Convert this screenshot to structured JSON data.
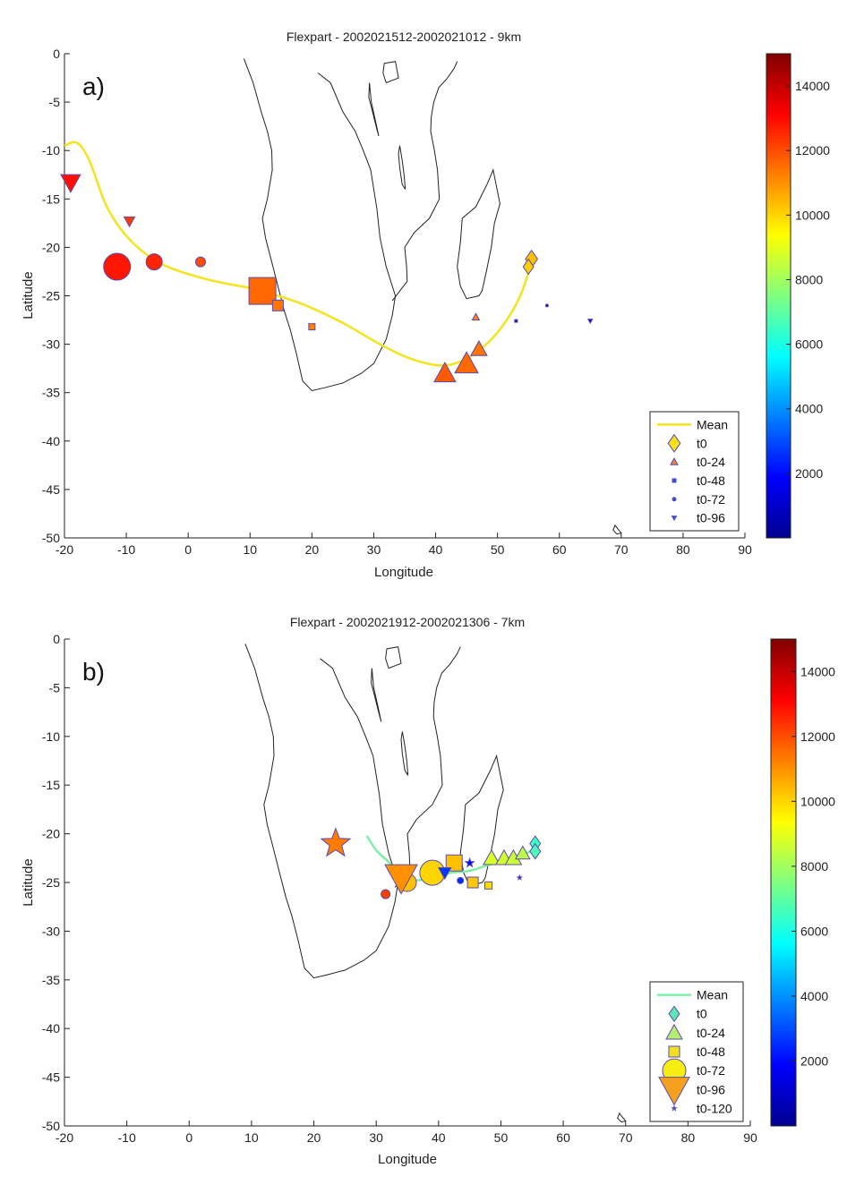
{
  "chart_data": [
    {
      "type": "scatter",
      "title": "Flexpart - 2002021512-2002021012 - 9km",
      "panel_label": "a)",
      "xlabel": "Longitude",
      "ylabel": "Latitude",
      "xlim": [
        -20,
        90
      ],
      "ylim": [
        -50,
        0
      ],
      "xticks": [
        "-20",
        "-10",
        "0",
        "10",
        "20",
        "30",
        "40",
        "50",
        "60",
        "70",
        "80",
        "90"
      ],
      "yticks": [
        "0",
        "-5",
        "-10",
        "-15",
        "-20",
        "-25",
        "-30",
        "-35",
        "-40",
        "-45",
        "-50"
      ],
      "colorbar": {
        "min": 0,
        "max": 15000,
        "ticks": [
          "2000",
          "4000",
          "6000",
          "8000",
          "10000",
          "12000",
          "14000"
        ]
      },
      "legend": {
        "placement": "bottom-right",
        "entries": [
          "Mean",
          "t0",
          "t0-24",
          "t0-48",
          "t0-72",
          "t0-96"
        ]
      },
      "mean_line": {
        "color": "#f5e31e",
        "points": [
          [
            -20,
            -9.5
          ],
          [
            -18,
            -9.2
          ],
          [
            -16,
            -11
          ],
          [
            -13,
            -16
          ],
          [
            -9,
            -19.5
          ],
          [
            -4,
            -21.8
          ],
          [
            3,
            -23.3
          ],
          [
            10,
            -24.2
          ],
          [
            14,
            -24.9
          ],
          [
            19,
            -26
          ],
          [
            25,
            -27.8
          ],
          [
            31,
            -30
          ],
          [
            36,
            -31.5
          ],
          [
            41,
            -32.2
          ],
          [
            45,
            -31.5
          ],
          [
            49,
            -29.5
          ],
          [
            52,
            -27
          ],
          [
            54,
            -24.5
          ],
          [
            55.5,
            -21.5
          ]
        ]
      },
      "series": [
        {
          "name": "t0",
          "marker": "diamond",
          "points": [
            {
              "x": 55.5,
              "y": -21.2,
              "alt": 10300,
              "size": 16
            },
            {
              "x": 55,
              "y": -22,
              "alt": 10100,
              "size": 14
            }
          ]
        },
        {
          "name": "t0-24",
          "marker": "triangle-up",
          "points": [
            {
              "x": 41.5,
              "y": -33,
              "alt": 11800,
              "size": 24
            },
            {
              "x": 45,
              "y": -32,
              "alt": 11600,
              "size": 26
            },
            {
              "x": 47,
              "y": -30.5,
              "alt": 11400,
              "size": 18
            },
            {
              "x": 46.5,
              "y": -27.2,
              "alt": 11200,
              "size": 8
            }
          ]
        },
        {
          "name": "t0-48",
          "marker": "square",
          "points": [
            {
              "x": 12,
              "y": -24.5,
              "alt": 11600,
              "size": 30
            },
            {
              "x": 14.5,
              "y": -26,
              "alt": 11400,
              "size": 12
            },
            {
              "x": 20,
              "y": -28.2,
              "alt": 11300,
              "size": 7
            },
            {
              "x": 53,
              "y": -27.6,
              "alt": 1000,
              "size": 3
            }
          ]
        },
        {
          "name": "t0-72",
          "marker": "circle",
          "points": [
            {
              "x": -11.5,
              "y": -22,
              "alt": 12800,
              "size": 30
            },
            {
              "x": -5.5,
              "y": -21.5,
              "alt": 12600,
              "size": 18
            },
            {
              "x": 2,
              "y": -21.5,
              "alt": 12000,
              "size": 11
            },
            {
              "x": 58,
              "y": -26,
              "alt": 1000,
              "size": 3
            }
          ]
        },
        {
          "name": "t0-96",
          "marker": "triangle-down",
          "points": [
            {
              "x": -19,
              "y": -13.3,
              "alt": 12900,
              "size": 22
            },
            {
              "x": -9.5,
              "y": -17.3,
              "alt": 12300,
              "size": 12
            },
            {
              "x": 65,
              "y": -27.6,
              "alt": 1000,
              "size": 5
            }
          ]
        }
      ]
    },
    {
      "type": "scatter",
      "title": "Flexpart - 2002021912-2002021306 - 7km",
      "panel_label": "b)",
      "xlabel": "Longitude",
      "ylabel": "Latitude",
      "xlim": [
        -20,
        90
      ],
      "ylim": [
        -50,
        0
      ],
      "xticks": [
        "-20",
        "-10",
        "0",
        "10",
        "20",
        "30",
        "40",
        "50",
        "60",
        "70",
        "80",
        "90"
      ],
      "yticks": [
        "0",
        "-5",
        "-10",
        "-15",
        "-20",
        "-25",
        "-30",
        "-35",
        "-40",
        "-45",
        "-50"
      ],
      "colorbar": {
        "min": 0,
        "max": 15000,
        "ticks": [
          "2000",
          "4000",
          "6000",
          "8000",
          "10000",
          "12000",
          "14000"
        ]
      },
      "legend": {
        "placement": "bottom-right",
        "entries": [
          "Mean",
          "t0",
          "t0-24",
          "t0-48",
          "t0-72",
          "t0-96",
          "t0-120"
        ]
      },
      "mean_line": {
        "color": "#7fefa8",
        "points": [
          [
            28.5,
            -20.2
          ],
          [
            30,
            -21.7
          ],
          [
            32,
            -22.9
          ],
          [
            34,
            -24.3
          ],
          [
            36,
            -24.8
          ],
          [
            39,
            -24.5
          ],
          [
            42,
            -24
          ],
          [
            45,
            -23.8
          ],
          [
            48,
            -23.2
          ],
          [
            51,
            -22.6
          ],
          [
            54,
            -22
          ],
          [
            56,
            -21.4
          ]
        ]
      },
      "series": [
        {
          "name": "t0",
          "marker": "diamond",
          "points": [
            {
              "x": 55.5,
              "y": -21,
              "alt": 6500,
              "size": 14
            },
            {
              "x": 55.5,
              "y": -21.8,
              "alt": 6700,
              "size": 14
            }
          ]
        },
        {
          "name": "t0-24",
          "marker": "triangle-up",
          "points": [
            {
              "x": 48.5,
              "y": -22.5,
              "alt": 8800,
              "size": 18
            },
            {
              "x": 50.5,
              "y": -22.5,
              "alt": 8700,
              "size": 18
            },
            {
              "x": 52,
              "y": -22.5,
              "alt": 8600,
              "size": 18
            },
            {
              "x": 53.5,
              "y": -22,
              "alt": 8400,
              "size": 16
            }
          ]
        },
        {
          "name": "t0-48",
          "marker": "square",
          "points": [
            {
              "x": 42.5,
              "y": -23,
              "alt": 10300,
              "size": 18
            },
            {
              "x": 45.5,
              "y": -25,
              "alt": 10200,
              "size": 12
            },
            {
              "x": 48,
              "y": -25.3,
              "alt": 9900,
              "size": 8
            }
          ]
        },
        {
          "name": "t0-72",
          "marker": "circle",
          "points": [
            {
              "x": 39,
              "y": -24,
              "alt": 10000,
              "size": 28
            },
            {
              "x": 35,
              "y": -25,
              "alt": 10300,
              "size": 20
            },
            {
              "x": 43.5,
              "y": -24.8,
              "alt": 2500,
              "size": 7
            },
            {
              "x": 31.5,
              "y": -26.2,
              "alt": 12200,
              "size": 10
            }
          ]
        },
        {
          "name": "t0-96",
          "marker": "triangle-down",
          "points": [
            {
              "x": 34,
              "y": -24.5,
              "alt": 11000,
              "size": 36
            },
            {
              "x": 41,
              "y": -24,
              "alt": 2700,
              "size": 14
            }
          ]
        },
        {
          "name": "t0-120",
          "marker": "star",
          "points": [
            {
              "x": 23.5,
              "y": -21,
              "alt": 11300,
              "size": 34
            },
            {
              "x": 45,
              "y": -23,
              "alt": 1800,
              "size": 10
            },
            {
              "x": 53,
              "y": -24.5,
              "alt": 1500,
              "size": 5
            }
          ]
        }
      ]
    }
  ]
}
